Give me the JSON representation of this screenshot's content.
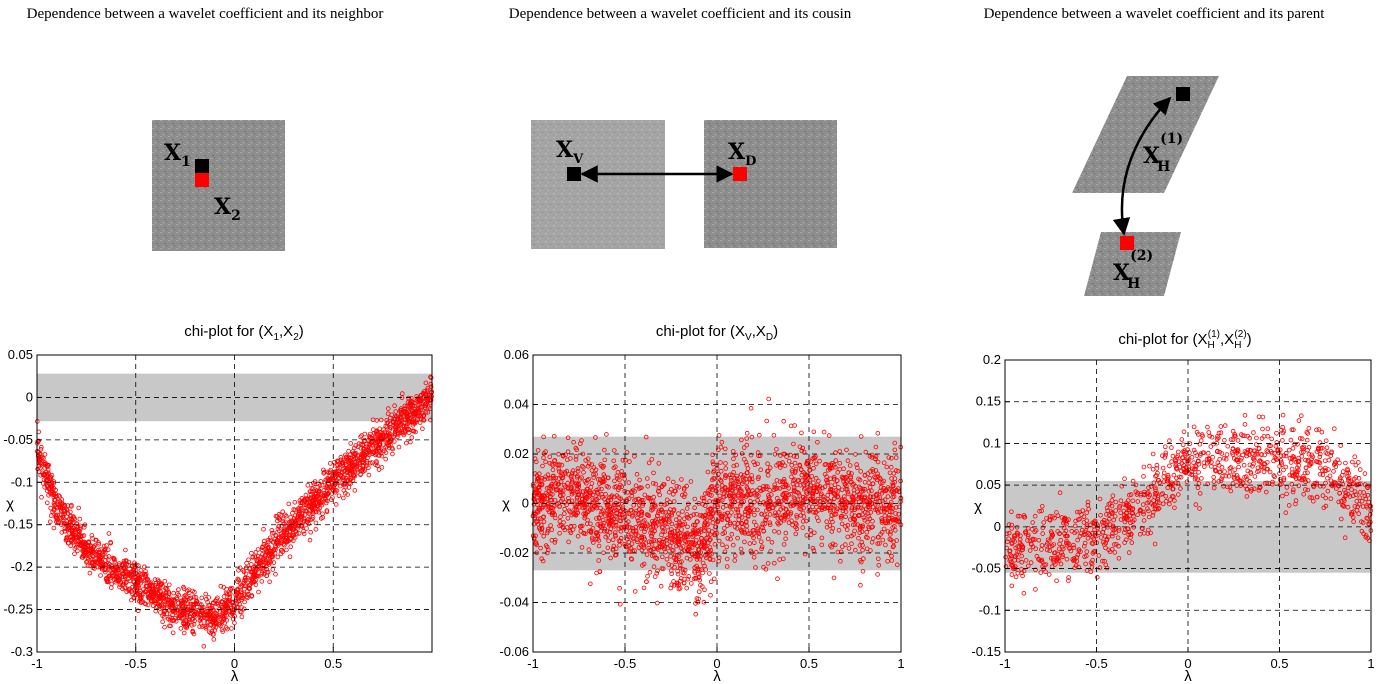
{
  "panels": [
    {
      "title": "Dependence between a wavelet coefficient and its neighbor"
    },
    {
      "title": "Dependence between a wavelet coefficient and its cousin"
    },
    {
      "title": "Dependence between a wavelet coefficient and its parent"
    }
  ],
  "diagram_labels": {
    "neighbor": {
      "a": "X",
      "a_sub": "1",
      "b": "X",
      "b_sub": "2"
    },
    "cousin": {
      "a": "X",
      "a_sub": "V",
      "b": "X",
      "b_sub": "D"
    },
    "parent": {
      "a": "X",
      "a_sub": "H",
      "a_sup": "(1)",
      "b": "X",
      "b_sub": "H",
      "b_sup": "(2)"
    }
  },
  "colors": {
    "marker": "#ff0000",
    "band": "#c8c8c8",
    "patch_gray": "#8c8c8c",
    "black_square": "#000000",
    "red_square": "#ff0000"
  },
  "chart_data": [
    {
      "type": "scatter",
      "title": "chi-plot for (X1,X2)",
      "xlabel": "λ",
      "ylabel": "χ",
      "xlim": [
        -1,
        1
      ],
      "ylim": [
        -0.3,
        0.05
      ],
      "xticks": [
        "-1",
        "-0.5",
        "0",
        "0.5"
      ],
      "yticks": [
        "0.05",
        "0",
        "-0.05",
        "-0.1",
        "-0.15",
        "-0.2",
        "-0.25",
        "-0.3"
      ],
      "band": [
        -0.028,
        0.028
      ],
      "grid": true,
      "trend": {
        "x": [
          -1,
          -0.9,
          -0.75,
          -0.5,
          -0.3,
          -0.1,
          0,
          0.25,
          0.5,
          0.75,
          1
        ],
        "y": [
          -0.06,
          -0.13,
          -0.18,
          -0.22,
          -0.25,
          -0.26,
          -0.24,
          -0.16,
          -0.1,
          -0.05,
          0.0
        ]
      },
      "spread": 0.02,
      "n_points": 2200
    },
    {
      "type": "scatter",
      "title": "chi-plot for (XV,XD)",
      "xlabel": "λ",
      "ylabel": "χ",
      "xlim": [
        -1,
        1
      ],
      "ylim": [
        -0.06,
        0.06
      ],
      "xticks": [
        "-1",
        "-0.5",
        "0",
        "0.5",
        "1"
      ],
      "yticks": [
        "0.06",
        "0.04",
        "0.02",
        "0",
        "-0.02",
        "-0.04",
        "-0.06"
      ],
      "band": [
        -0.027,
        0.027
      ],
      "grid": true,
      "trend": {
        "x": [
          -1,
          -0.8,
          -0.5,
          -0.2,
          -0.1,
          0,
          0.2,
          0.5,
          0.8,
          1
        ],
        "y": [
          0.0,
          0.005,
          -0.005,
          -0.015,
          -0.02,
          0.0,
          0.0,
          0.005,
          0.0,
          0.0
        ]
      },
      "spread": 0.018,
      "n_points": 2200
    },
    {
      "type": "scatter",
      "title": "chi-plot for (XH(1),XH(2))",
      "xlabel": "λ",
      "ylabel": "χ",
      "xlim": [
        -1,
        1
      ],
      "ylim": [
        -0.15,
        0.2
      ],
      "xticks": [
        "-1",
        "-0.5",
        "0",
        "0.5",
        "1"
      ],
      "yticks": [
        "0.2",
        "0.15",
        "0.1",
        "0.05",
        "0",
        "-0.05",
        "-0.1",
        "-0.15"
      ],
      "band": [
        -0.055,
        0.055
      ],
      "grid": true,
      "trend": {
        "x": [
          -1,
          -0.5,
          -0.2,
          0,
          0.2,
          0.5,
          0.75,
          1
        ],
        "y": [
          -0.03,
          -0.01,
          0.03,
          0.08,
          0.08,
          0.08,
          0.07,
          0.02
        ]
      },
      "spread": 0.035,
      "n_points": 1100
    }
  ]
}
